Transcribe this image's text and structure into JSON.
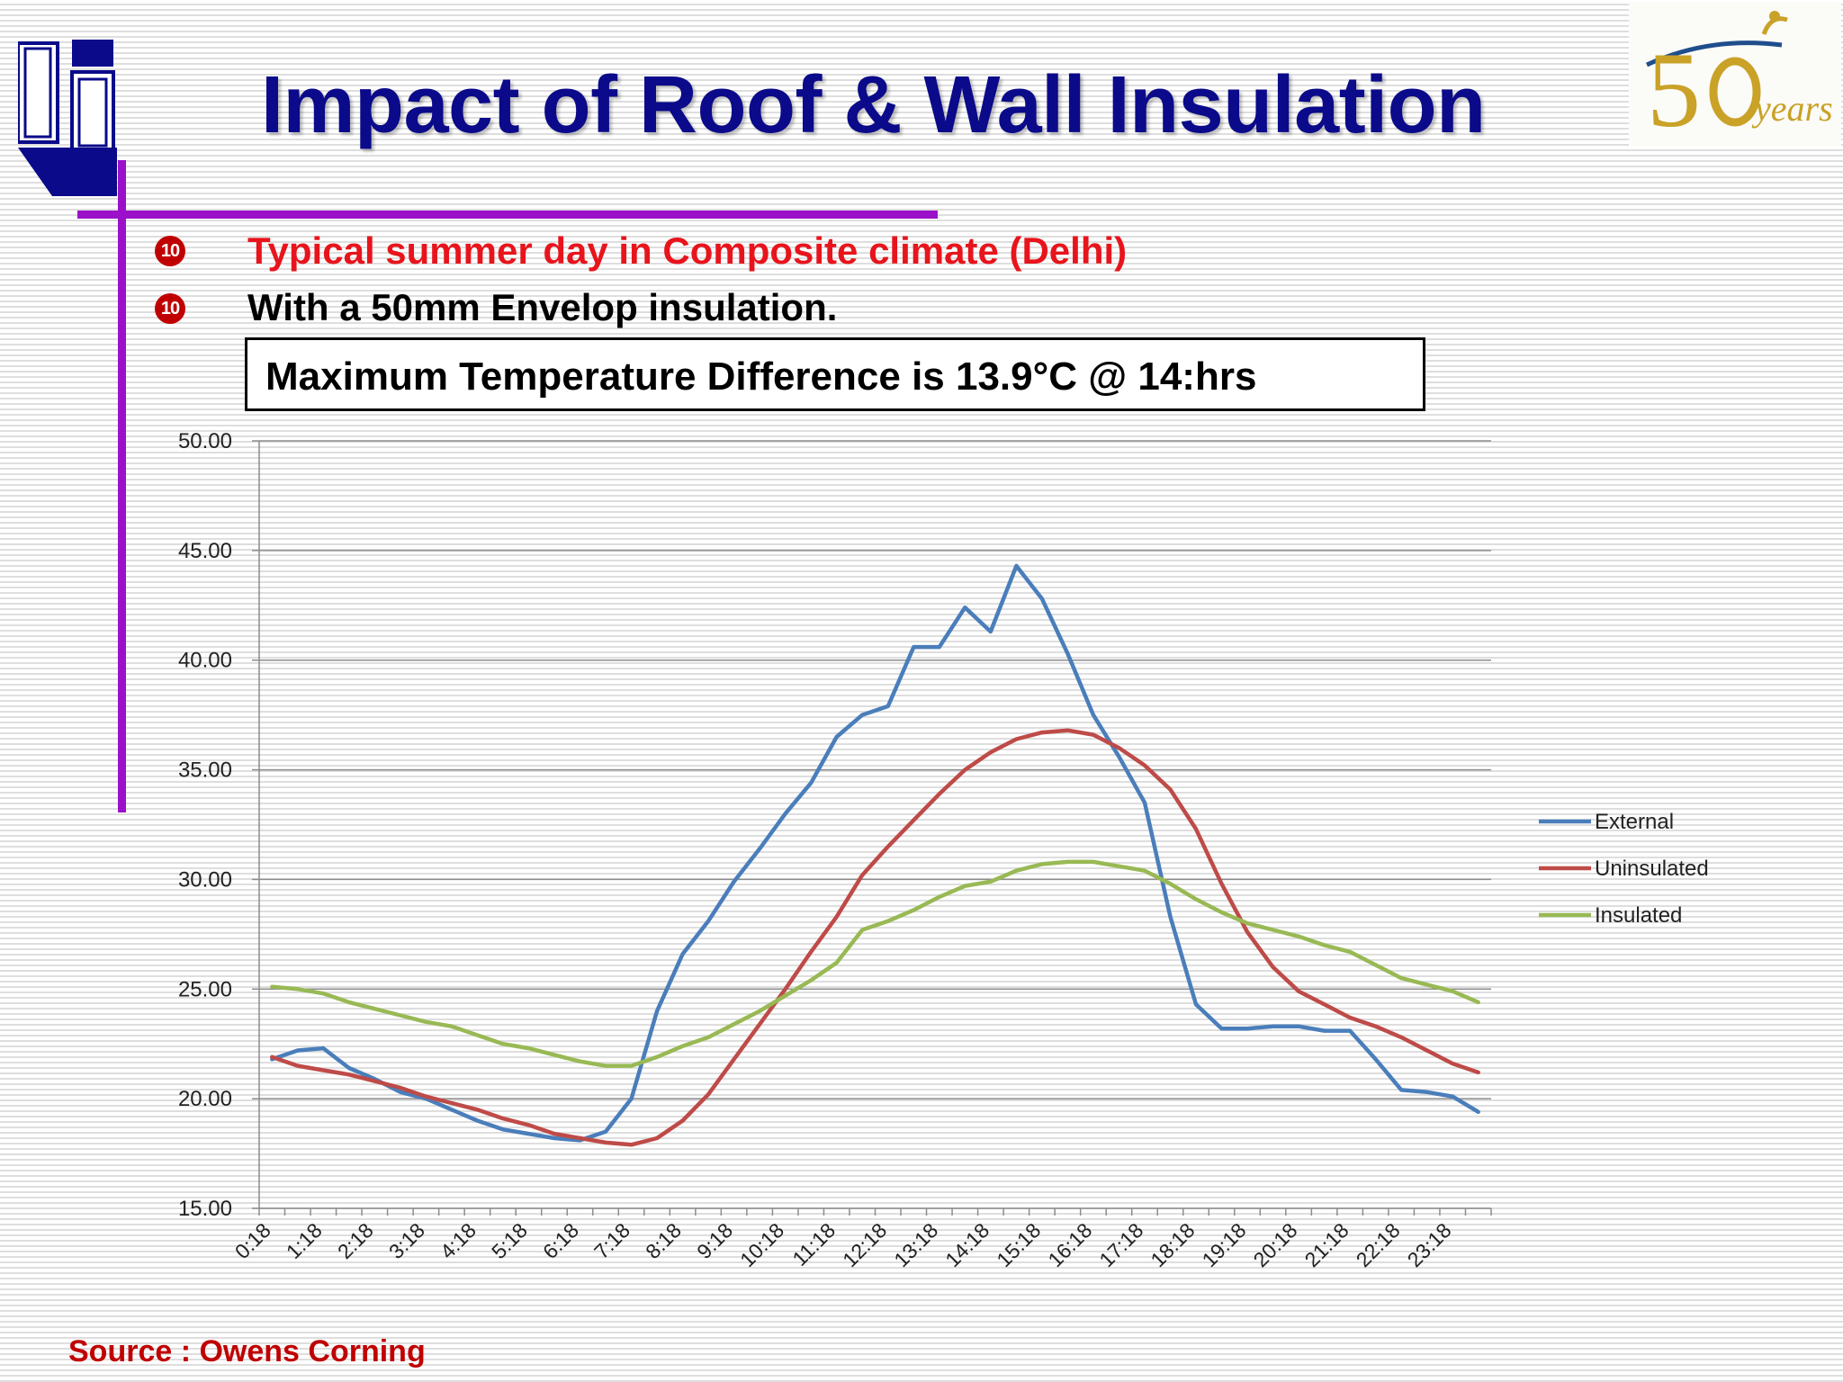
{
  "slide": {
    "title": "Impact of Roof & Wall Insulation",
    "bullets": [
      {
        "marker": "10",
        "text": "Typical summer day in Composite climate (Delhi)",
        "color": "#e8141c"
      },
      {
        "marker": "10",
        "text": "With a 50mm Envelop insulation.",
        "color": "#000000"
      }
    ],
    "callout": "Maximum Temperature Difference is 13.9°C @ 14:hrs",
    "source": "Source : Owens Corning",
    "badge": {
      "number": "50",
      "word": "years"
    },
    "colors": {
      "title": "#0a0a8a",
      "accent_bar": "#9b11c9",
      "bullet": "#c00000",
      "source": "#c00000"
    }
  },
  "chart_data": {
    "type": "line",
    "title": "",
    "xlabel": "",
    "ylabel": "",
    "ylim": [
      15,
      50
    ],
    "yticks": [
      "15.00",
      "20.00",
      "25.00",
      "30.00",
      "35.00",
      "40.00",
      "45.00",
      "50.00"
    ],
    "x_tick_labels": [
      "0:18",
      "1:18",
      "2:18",
      "3:18",
      "4:18",
      "5:18",
      "6:18",
      "7:18",
      "8:18",
      "9:18",
      "10:18",
      "11:18",
      "12:18",
      "13:18",
      "14:18",
      "15:18",
      "16:18",
      "17:18",
      "18:18",
      "19:18",
      "20:18",
      "21:18",
      "22:18",
      "23:18"
    ],
    "x_points": [
      "0:18",
      "0:48",
      "1:18",
      "1:48",
      "2:18",
      "2:48",
      "3:18",
      "3:48",
      "4:18",
      "4:48",
      "5:18",
      "5:48",
      "6:18",
      "6:48",
      "7:18",
      "7:48",
      "8:18",
      "8:48",
      "9:18",
      "9:48",
      "10:18",
      "10:48",
      "11:18",
      "11:48",
      "12:18",
      "12:48",
      "13:18",
      "13:48",
      "14:18",
      "14:48",
      "15:18",
      "15:48",
      "16:18",
      "16:48",
      "17:18",
      "17:48",
      "18:18",
      "18:48",
      "19:18",
      "19:48",
      "20:18",
      "20:48",
      "21:18",
      "21:48",
      "22:18",
      "22:48",
      "23:18",
      "23:48"
    ],
    "grid": true,
    "legend": "right",
    "series": [
      {
        "name": "External",
        "color": "#4a7ebb",
        "values": [
          21.8,
          22.2,
          22.3,
          21.4,
          20.9,
          20.3,
          20.0,
          19.5,
          19.0,
          18.6,
          18.4,
          18.2,
          18.1,
          18.5,
          20.0,
          24.0,
          26.6,
          28.1,
          29.9,
          31.4,
          33.0,
          34.4,
          36.5,
          37.5,
          37.9,
          40.6,
          40.6,
          42.4,
          41.3,
          44.3,
          42.8,
          40.3,
          37.5,
          35.6,
          33.5,
          28.3,
          24.3,
          23.2,
          23.2,
          23.3,
          23.3,
          23.1,
          23.1,
          21.8,
          20.4,
          20.3,
          20.1,
          19.4
        ]
      },
      {
        "name": "Uninsulated",
        "color": "#be4b48",
        "values": [
          21.9,
          21.5,
          21.3,
          21.1,
          20.8,
          20.5,
          20.1,
          19.8,
          19.5,
          19.1,
          18.8,
          18.4,
          18.2,
          18.0,
          17.9,
          18.2,
          19.0,
          20.2,
          21.8,
          23.4,
          25.0,
          26.7,
          28.3,
          30.2,
          31.5,
          32.7,
          33.9,
          35.0,
          35.8,
          36.4,
          36.7,
          36.8,
          36.6,
          36.0,
          35.2,
          34.1,
          32.3,
          29.8,
          27.6,
          26.0,
          24.9,
          24.3,
          23.7,
          23.3,
          22.8,
          22.2,
          21.6,
          21.2
        ]
      },
      {
        "name": "Insulated",
        "color": "#98b954",
        "values": [
          25.1,
          25.0,
          24.8,
          24.4,
          24.1,
          23.8,
          23.5,
          23.3,
          22.9,
          22.5,
          22.3,
          22.0,
          21.7,
          21.5,
          21.5,
          21.9,
          22.4,
          22.8,
          23.4,
          24.0,
          24.7,
          25.4,
          26.2,
          27.7,
          28.1,
          28.6,
          29.2,
          29.7,
          29.9,
          30.4,
          30.7,
          30.8,
          30.8,
          30.6,
          30.4,
          29.8,
          29.1,
          28.5,
          28.0,
          27.7,
          27.4,
          27.0,
          26.7,
          26.1,
          25.5,
          25.2,
          24.9,
          24.4
        ]
      }
    ]
  }
}
